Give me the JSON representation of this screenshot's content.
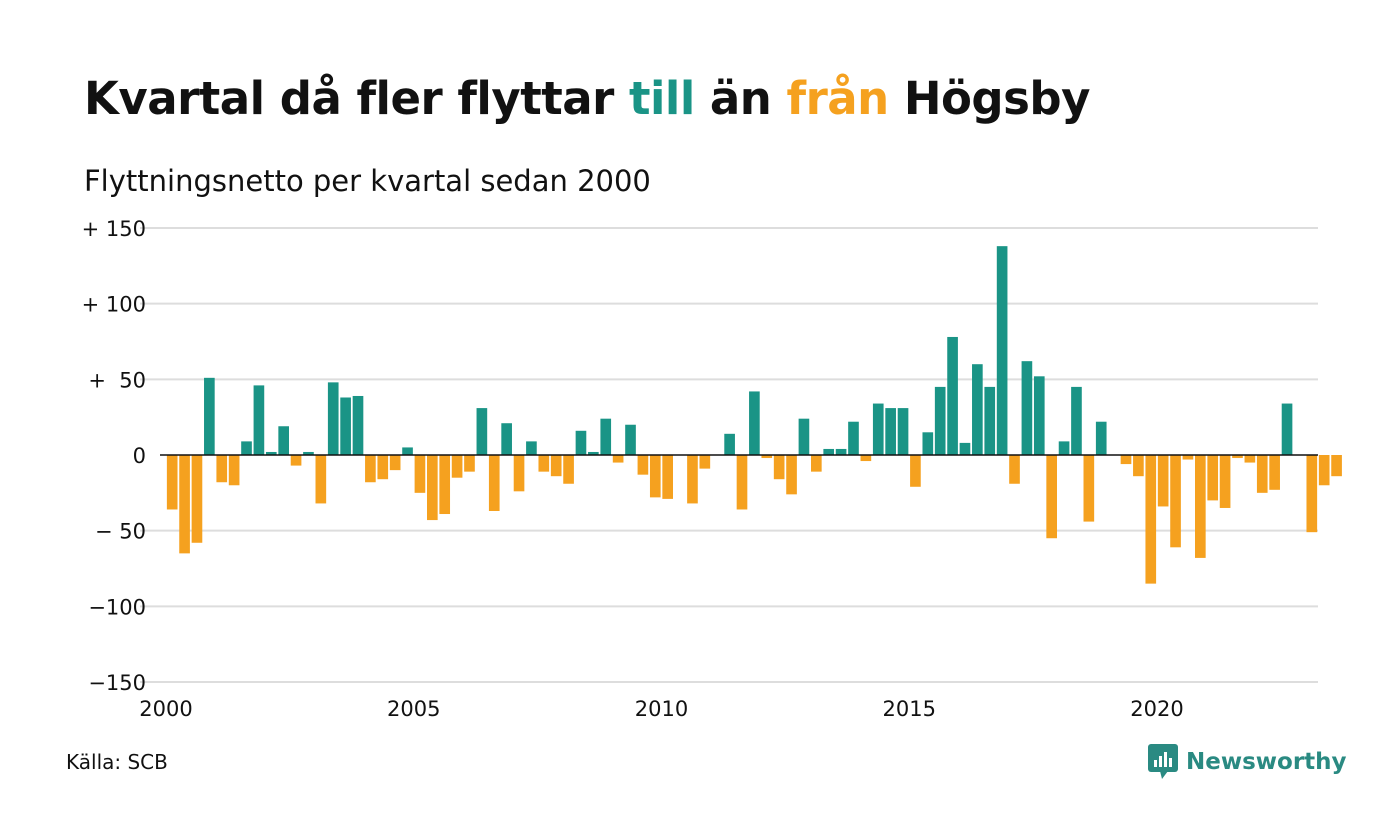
{
  "title": {
    "part1": "Kvartal då fler flyttar ",
    "highlight_in": "till",
    "part2": " än ",
    "highlight_out": "från",
    "part3": " Högsby"
  },
  "subtitle": "Flyttningsnetto per kvartal sedan 2000",
  "source": "Källa: SCB",
  "logo": {
    "text": "Newsworthy",
    "icon": "newsworthy-chart-bubble-icon"
  },
  "colors": {
    "positive": "#1a9486",
    "negative": "#f5a11f",
    "grid": "#dddddd",
    "zero": "#111111"
  },
  "chart_data": {
    "type": "bar",
    "title": "Kvartal då fler flyttar till än från Högsby",
    "subtitle": "Flyttningsnetto per kvartal sedan 2000",
    "start": "2000Q1",
    "ylim": [
      -150,
      150
    ],
    "xlim": [
      2000,
      2023.25
    ],
    "y_ticks": [
      150,
      100,
      50,
      0,
      -50,
      -100,
      -150
    ],
    "y_tick_labels": [
      "+ 150",
      "+ 100",
      "+  50",
      "0",
      "− 50",
      "−100",
      "−150"
    ],
    "x_ticks": [
      2000,
      2005,
      2010,
      2015,
      2020
    ],
    "x_tick_labels": [
      "2000",
      "2005",
      "2010",
      "2015",
      "2020"
    ],
    "grid": true,
    "categories": [
      "2000Q1",
      "2000Q2",
      "2000Q3",
      "2000Q4",
      "2001Q1",
      "2001Q2",
      "2001Q3",
      "2001Q4",
      "2002Q1",
      "2002Q2",
      "2002Q3",
      "2002Q4",
      "2003Q1",
      "2003Q2",
      "2003Q3",
      "2003Q4",
      "2004Q1",
      "2004Q2",
      "2004Q3",
      "2004Q4",
      "2005Q1",
      "2005Q2",
      "2005Q3",
      "2005Q4",
      "2006Q1",
      "2006Q2",
      "2006Q3",
      "2006Q4",
      "2007Q1",
      "2007Q2",
      "2007Q3",
      "2007Q4",
      "2008Q1",
      "2008Q2",
      "2008Q3",
      "2008Q4",
      "2009Q1",
      "2009Q2",
      "2009Q3",
      "2009Q4",
      "2010Q1",
      "2010Q2",
      "2010Q3",
      "2010Q4",
      "2011Q1",
      "2011Q2",
      "2011Q3",
      "2011Q4",
      "2012Q1",
      "2012Q2",
      "2012Q3",
      "2012Q4",
      "2013Q1",
      "2013Q2",
      "2013Q3",
      "2013Q4",
      "2014Q1",
      "2014Q2",
      "2014Q3",
      "2014Q4",
      "2015Q1",
      "2015Q2",
      "2015Q3",
      "2015Q4",
      "2016Q1",
      "2016Q2",
      "2016Q3",
      "2016Q4",
      "2017Q1",
      "2017Q2",
      "2017Q3",
      "2017Q4",
      "2018Q1",
      "2018Q2",
      "2018Q3",
      "2018Q4",
      "2019Q1",
      "2019Q2",
      "2019Q3",
      "2019Q4",
      "2020Q1",
      "2020Q2",
      "2020Q3",
      "2020Q4",
      "2021Q1",
      "2021Q2",
      "2021Q3",
      "2021Q4",
      "2022Q1",
      "2022Q2",
      "2022Q3",
      "2022Q4",
      "2023Q1",
      "2023Q2",
      "2023Q3",
      "2023Q4"
    ],
    "values": [
      -36,
      -65,
      -58,
      51,
      -18,
      -20,
      9,
      46,
      2,
      19,
      -7,
      2,
      -32,
      48,
      38,
      39,
      -18,
      -16,
      -10,
      5,
      -25,
      -43,
      -39,
      -15,
      -11,
      31,
      -37,
      21,
      -24,
      9,
      -11,
      -14,
      -19,
      16,
      2,
      24,
      -5,
      20,
      -13,
      -28,
      -29,
      0,
      -32,
      -9,
      0,
      14,
      -36,
      42,
      -2,
      -16,
      -26,
      24,
      -11,
      4,
      4,
      22,
      -4,
      34,
      31,
      31,
      -21,
      15,
      45,
      78,
      8,
      60,
      45,
      138,
      -19,
      62,
      52,
      -55,
      9,
      45,
      -44,
      22,
      0,
      -6,
      -14,
      -85,
      -34,
      -61,
      -3,
      -68,
      -30,
      -35,
      -2,
      -5,
      -25,
      -23,
      34,
      0,
      -51,
      -20,
      -14,
      0
    ]
  }
}
